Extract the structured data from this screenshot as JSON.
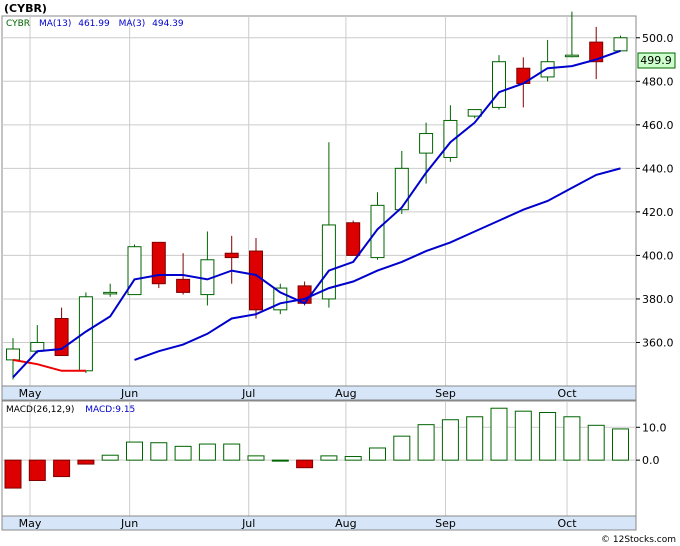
{
  "title": "(CYBR)",
  "watermark": "© 12Stocks.com",
  "price_panel": {
    "legend": {
      "symbol": "CYBR",
      "ma13_label": "MA(13)",
      "ma13_value": "461.99",
      "ma3_label": "MA(3)",
      "ma3_value": "494.39"
    },
    "last_price": "499.9"
  },
  "macd_panel": {
    "legend": {
      "label": "MACD(26,12,9)",
      "value_label": "MACD:9.15"
    }
  },
  "colors": {
    "up": "#006400",
    "down": "#dd0000",
    "ma_fast": "#ee0000",
    "ma_slow": "#0000cc",
    "axis_band": "#d6e6f8",
    "grid": "#cccccc",
    "last_price_bg": "#ccffcc"
  },
  "chart_data": [
    {
      "type": "candlestick",
      "title": "",
      "ylim": [
        340,
        510
      ],
      "y_ticks": [
        360,
        380,
        400,
        420,
        440,
        460,
        480,
        500
      ],
      "x_month_labels": [
        "May",
        "Jun",
        "Jul",
        "Aug",
        "Sep",
        "Oct"
      ],
      "x_month_label_index": [
        1.2,
        5.3,
        10.2,
        14.2,
        18.3,
        23.3
      ],
      "grid": true,
      "candles": [
        {
          "o": 352,
          "h": 362,
          "l": 343,
          "c": 357
        },
        {
          "o": 356,
          "h": 368,
          "l": 355,
          "c": 360
        },
        {
          "o": 371,
          "h": 376,
          "l": 354,
          "c": 354
        },
        {
          "o": 347,
          "h": 383,
          "l": 346,
          "c": 381
        },
        {
          "o": 383,
          "h": 387,
          "l": 381,
          "c": 383
        },
        {
          "o": 382,
          "h": 405,
          "l": 382,
          "c": 404
        },
        {
          "o": 406,
          "h": 406,
          "l": 385,
          "c": 387
        },
        {
          "o": 389,
          "h": 401,
          "l": 382,
          "c": 383
        },
        {
          "o": 382,
          "h": 411,
          "l": 377,
          "c": 398
        },
        {
          "o": 401,
          "h": 409,
          "l": 387,
          "c": 399
        },
        {
          "o": 402,
          "h": 408,
          "l": 371,
          "c": 375
        },
        {
          "o": 375,
          "h": 387,
          "l": 373,
          "c": 385
        },
        {
          "o": 386,
          "h": 388,
          "l": 377,
          "c": 378
        },
        {
          "o": 380,
          "h": 452,
          "l": 376,
          "c": 414
        },
        {
          "o": 415,
          "h": 416,
          "l": 400,
          "c": 400
        },
        {
          "o": 399,
          "h": 429,
          "l": 398,
          "c": 423
        },
        {
          "o": 421,
          "h": 448,
          "l": 419,
          "c": 440
        },
        {
          "o": 447,
          "h": 461,
          "l": 433,
          "c": 456
        },
        {
          "o": 445,
          "h": 469,
          "l": 443,
          "c": 462
        },
        {
          "o": 464,
          "h": 467,
          "l": 463,
          "c": 467
        },
        {
          "o": 468,
          "h": 492,
          "l": 467,
          "c": 489
        },
        {
          "o": 486,
          "h": 491,
          "l": 468,
          "c": 479
        },
        {
          "o": 482,
          "h": 499,
          "l": 480,
          "c": 489
        },
        {
          "o": 492,
          "h": 512,
          "l": 491,
          "c": 492
        },
        {
          "o": 498,
          "h": 505,
          "l": 481,
          "c": 489
        },
        {
          "o": 494,
          "h": 501,
          "l": 494,
          "c": 500
        }
      ],
      "ma3": [
        352,
        350,
        347,
        347,
        null,
        null,
        null,
        null,
        389,
        null,
        392,
        null,
        381,
        null,
        null,
        null,
        null,
        null,
        null,
        null,
        null,
        null,
        null,
        null,
        null,
        null
      ],
      "ma13": [
        344,
        356,
        357,
        365,
        372,
        389,
        391,
        391,
        389,
        393,
        391,
        383,
        378,
        393,
        397,
        412,
        422,
        438,
        452,
        461,
        475,
        479,
        486,
        487,
        490,
        494
      ],
      "ma13_slow": [
        null,
        null,
        null,
        null,
        null,
        352,
        356,
        359,
        364,
        371,
        373,
        378,
        380,
        385,
        388,
        393,
        397,
        402,
        406,
        411,
        416,
        421,
        425,
        431,
        437,
        440
      ]
    },
    {
      "type": "bar",
      "title": "",
      "ylim": [
        -17,
        18
      ],
      "y_ticks": [
        0,
        10
      ],
      "y_tick_labels": [
        "0.0",
        "10.0"
      ],
      "values": [
        -8.5,
        -6.2,
        -5.0,
        -1.2,
        1.5,
        5.5,
        5.3,
        4.2,
        4.9,
        4.9,
        1.3,
        0.0,
        -2.3,
        1.3,
        1.1,
        3.7,
        7.3,
        10.8,
        12.3,
        13.2,
        15.8,
        14.9,
        14.5,
        13.2,
        10.6,
        9.5
      ],
      "x_month_labels": [
        "May",
        "Jun",
        "Jul",
        "Aug",
        "Sep",
        "Oct"
      ]
    }
  ]
}
